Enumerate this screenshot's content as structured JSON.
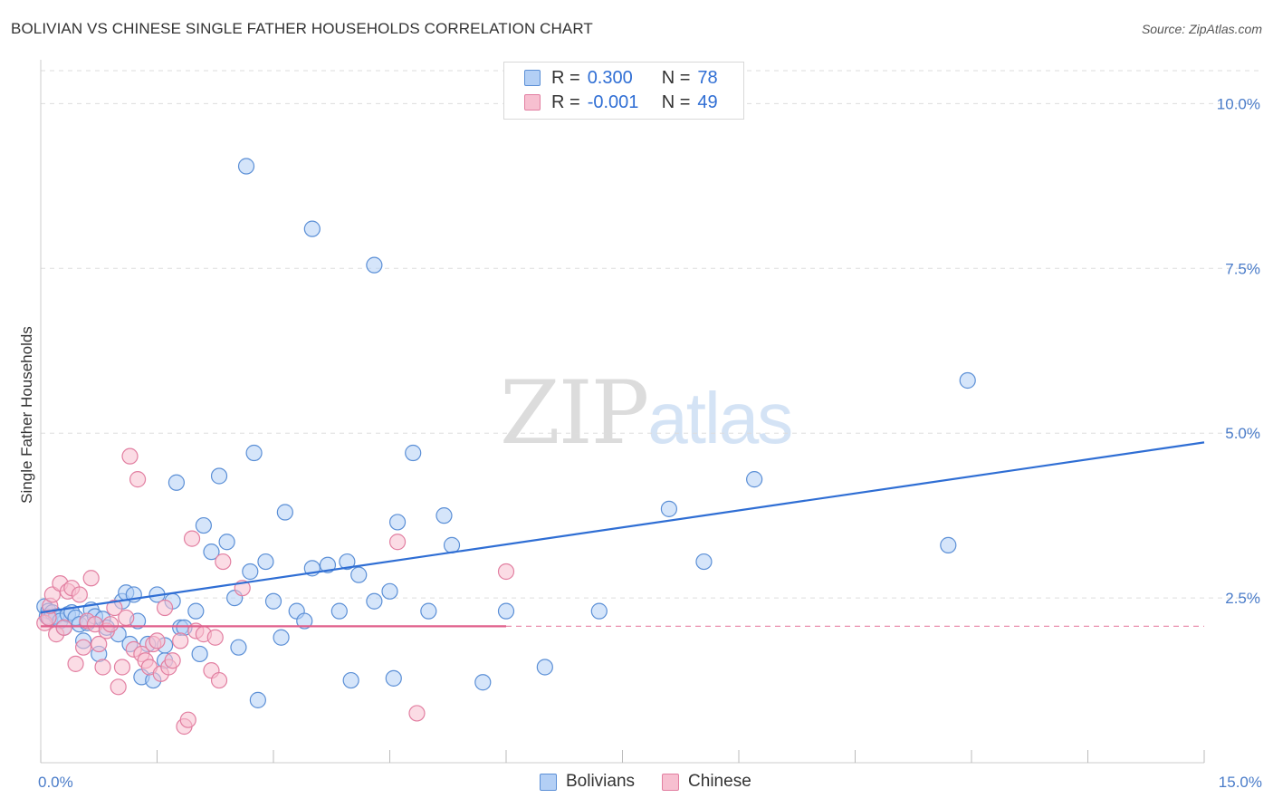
{
  "title": "BOLIVIAN VS CHINESE SINGLE FATHER HOUSEHOLDS CORRELATION CHART",
  "source": "Source: ZipAtlas.com",
  "watermark": {
    "zip": "ZIP",
    "atlas": "atlas"
  },
  "legend_top": [
    {
      "r_label": "R =",
      "r_value": "0.300",
      "n_label": "N =",
      "n_value": "78"
    },
    {
      "r_label": "R =",
      "r_value": "-0.001",
      "n_label": "N =",
      "n_value": "49"
    }
  ],
  "legend_bottom": [
    {
      "label": "Bolivians"
    },
    {
      "label": "Chinese"
    }
  ],
  "colors": {
    "blue_fill": "#b3cff5",
    "blue_stroke": "#5b8fd6",
    "blue_line": "#2f6ed4",
    "pink_fill": "#f7bfd0",
    "pink_stroke": "#e27fa1",
    "pink_line": "#e0608c",
    "tick_text": "#4a7cc9",
    "grid": "#dddddd"
  },
  "chart_data": {
    "type": "scatter",
    "title": "BOLIVIAN VS CHINESE SINGLE FATHER HOUSEHOLDS CORRELATION CHART",
    "xlabel": "",
    "ylabel": "Single Father Households",
    "xlim": [
      0,
      15
    ],
    "ylim": [
      0,
      10.5
    ],
    "x_tick_labels": [
      "0.0%",
      "15.0%"
    ],
    "y_ticks": [
      2.5,
      5.0,
      7.5,
      10.0
    ],
    "y_tick_labels": [
      "2.5%",
      "5.0%",
      "7.5%",
      "10.0%"
    ],
    "series": [
      {
        "name": "Bolivians",
        "r": 0.3,
        "n": 78,
        "trend": {
          "x0": 0.0,
          "y0": 2.28,
          "x1": 15.0,
          "y1": 4.86
        },
        "points": [
          [
            0.05,
            2.37
          ],
          [
            0.08,
            2.22
          ],
          [
            0.1,
            2.3
          ],
          [
            0.12,
            2.18
          ],
          [
            0.15,
            2.28
          ],
          [
            0.2,
            2.22
          ],
          [
            0.25,
            2.15
          ],
          [
            0.3,
            2.05
          ],
          [
            0.35,
            2.25
          ],
          [
            0.4,
            2.28
          ],
          [
            0.45,
            2.2
          ],
          [
            0.5,
            2.1
          ],
          [
            0.55,
            1.85
          ],
          [
            0.6,
            2.12
          ],
          [
            0.65,
            2.32
          ],
          [
            0.7,
            2.22
          ],
          [
            0.75,
            1.65
          ],
          [
            0.8,
            2.18
          ],
          [
            0.85,
            2.05
          ],
          [
            1.0,
            1.95
          ],
          [
            1.05,
            2.45
          ],
          [
            1.1,
            2.58
          ],
          [
            1.15,
            1.8
          ],
          [
            1.2,
            2.55
          ],
          [
            1.25,
            2.15
          ],
          [
            1.3,
            1.3
          ],
          [
            1.38,
            1.8
          ],
          [
            1.45,
            1.25
          ],
          [
            1.5,
            2.55
          ],
          [
            1.6,
            1.55
          ],
          [
            1.6,
            1.78
          ],
          [
            1.7,
            2.45
          ],
          [
            1.8,
            2.05
          ],
          [
            1.85,
            2.05
          ],
          [
            2.0,
            2.3
          ],
          [
            2.05,
            1.65
          ],
          [
            2.1,
            3.6
          ],
          [
            2.2,
            3.2
          ],
          [
            2.3,
            4.35
          ],
          [
            2.4,
            3.35
          ],
          [
            2.5,
            2.5
          ],
          [
            2.55,
            1.75
          ],
          [
            2.7,
            2.9
          ],
          [
            2.75,
            4.7
          ],
          [
            2.8,
            0.95
          ],
          [
            2.9,
            3.05
          ],
          [
            3.0,
            2.45
          ],
          [
            3.1,
            1.9
          ],
          [
            3.15,
            3.8
          ],
          [
            3.3,
            2.3
          ],
          [
            3.4,
            2.15
          ],
          [
            3.5,
            2.95
          ],
          [
            3.7,
            3.0
          ],
          [
            3.85,
            2.3
          ],
          [
            3.95,
            3.05
          ],
          [
            4.0,
            1.25
          ],
          [
            4.1,
            2.85
          ],
          [
            4.3,
            2.45
          ],
          [
            4.5,
            2.6
          ],
          [
            4.55,
            1.28
          ],
          [
            4.6,
            3.65
          ],
          [
            4.8,
            4.7
          ],
          [
            5.0,
            2.3
          ],
          [
            5.2,
            3.75
          ],
          [
            5.3,
            3.3
          ],
          [
            5.7,
            1.22
          ],
          [
            6.0,
            2.3
          ],
          [
            6.5,
            1.45
          ],
          [
            7.2,
            2.3
          ],
          [
            8.1,
            3.85
          ],
          [
            8.55,
            3.05
          ],
          [
            9.2,
            4.3
          ],
          [
            11.7,
            3.3
          ],
          [
            11.95,
            5.8
          ],
          [
            2.65,
            9.05
          ],
          [
            3.5,
            8.1
          ],
          [
            4.3,
            7.55
          ],
          [
            1.75,
            4.25
          ]
        ]
      },
      {
        "name": "Chinese",
        "r": -0.001,
        "n": 49,
        "trend": {
          "x0": 0.0,
          "y0": 2.07,
          "x1": 6.0,
          "y1": 2.07,
          "dashed_to": 15.0
        },
        "points": [
          [
            0.05,
            2.12
          ],
          [
            0.1,
            2.2
          ],
          [
            0.12,
            2.38
          ],
          [
            0.15,
            2.55
          ],
          [
            0.2,
            1.95
          ],
          [
            0.25,
            2.72
          ],
          [
            0.3,
            2.05
          ],
          [
            0.35,
            2.6
          ],
          [
            0.4,
            2.65
          ],
          [
            0.45,
            1.5
          ],
          [
            0.5,
            2.55
          ],
          [
            0.55,
            1.75
          ],
          [
            0.6,
            2.15
          ],
          [
            0.65,
            2.8
          ],
          [
            0.7,
            2.1
          ],
          [
            0.75,
            1.8
          ],
          [
            0.8,
            1.45
          ],
          [
            0.85,
            2.0
          ],
          [
            0.9,
            2.1
          ],
          [
            0.95,
            2.35
          ],
          [
            1.0,
            1.15
          ],
          [
            1.05,
            1.45
          ],
          [
            1.1,
            2.2
          ],
          [
            1.15,
            4.65
          ],
          [
            1.2,
            1.72
          ],
          [
            1.25,
            4.3
          ],
          [
            1.3,
            1.65
          ],
          [
            1.35,
            1.55
          ],
          [
            1.4,
            1.45
          ],
          [
            1.45,
            1.8
          ],
          [
            1.5,
            1.85
          ],
          [
            1.55,
            1.35
          ],
          [
            1.6,
            2.35
          ],
          [
            1.65,
            1.45
          ],
          [
            1.7,
            1.55
          ],
          [
            1.8,
            1.85
          ],
          [
            1.85,
            0.55
          ],
          [
            1.9,
            0.65
          ],
          [
            1.95,
            3.4
          ],
          [
            2.0,
            2.0
          ],
          [
            2.1,
            1.95
          ],
          [
            2.2,
            1.4
          ],
          [
            2.25,
            1.9
          ],
          [
            2.3,
            1.25
          ],
          [
            2.35,
            3.05
          ],
          [
            2.6,
            2.65
          ],
          [
            4.6,
            3.35
          ],
          [
            4.85,
            0.75
          ],
          [
            6.0,
            2.9
          ]
        ]
      }
    ]
  }
}
